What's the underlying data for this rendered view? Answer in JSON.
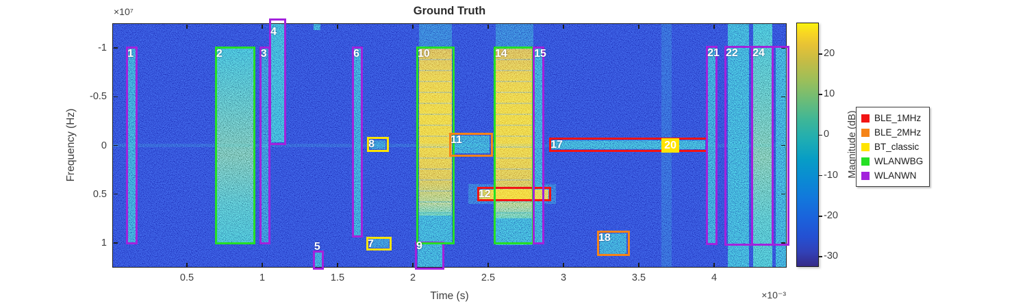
{
  "title": {
    "text": "Ground Truth"
  },
  "axes": {
    "x": {
      "label": "Time (s)",
      "exponent": "×10⁻³",
      "ticks": [
        "0.5",
        "1",
        "1.5",
        "2",
        "2.5",
        "3",
        "3.5",
        "4"
      ],
      "tick_values": [
        0.5,
        1,
        1.5,
        2,
        2.5,
        3,
        3.5,
        4
      ]
    },
    "y": {
      "label": "Frequency (Hz)",
      "exponent": "×10⁷",
      "ticks": [
        "-1",
        "-0.5",
        "0",
        "0.5",
        "1"
      ],
      "tick_values": [
        -1,
        -0.5,
        0,
        0.5,
        1
      ]
    }
  },
  "colorbar": {
    "label": "Magnitude (dB)",
    "ticks": [
      "20",
      "10",
      "0",
      "-10",
      "-20",
      "-30"
    ],
    "tick_values": [
      20,
      10,
      0,
      -10,
      -20,
      -30
    ]
  },
  "legend": {
    "items": [
      {
        "label": "BLE_1MHz",
        "color": "#f21414"
      },
      {
        "label": "BLE_2MHz",
        "color": "#f58418"
      },
      {
        "label": "BT_classic",
        "color": "#ffe400"
      },
      {
        "label": "WLANWBG",
        "color": "#25e025"
      },
      {
        "label": "WLANWN",
        "color": "#a322dc"
      }
    ]
  },
  "chart_data": {
    "type": "heatmap",
    "subtype": "spectrogram_with_object_annotations",
    "time_axis": {
      "unit": "s",
      "scale": 0.001,
      "range_ms": [
        0.0,
        4.49
      ]
    },
    "freq_axis": {
      "unit": "Hz",
      "scale": 10000000,
      "range": [
        -1.25,
        1.25
      ],
      "direction": "negative_up"
    },
    "magnitude_range_dB": [
      -32,
      28
    ],
    "annotations": [
      {
        "n": "1",
        "cls": "WLANWN",
        "t_ms": [
          0.105,
          0.164
        ],
        "f_1e7Hz": [
          -1.0,
          1.0
        ]
      },
      {
        "n": "2",
        "cls": "WLANWBG",
        "t_ms": [
          0.695,
          0.945
        ],
        "f_1e7Hz": [
          -1.0,
          1.0
        ]
      },
      {
        "n": "3",
        "cls": "WLANWN",
        "t_ms": [
          0.99,
          1.045
        ],
        "f_1e7Hz": [
          -1.0,
          1.0
        ]
      },
      {
        "n": "4",
        "cls": "WLANWN",
        "t_ms": [
          1.055,
          1.148
        ],
        "f_1e7Hz": [
          -1.29,
          -0.02
        ],
        "label_dy": 9
      },
      {
        "n": "5",
        "cls": "WLANWN",
        "t_ms": [
          1.345,
          1.4
        ],
        "f_1e7Hz": [
          1.09,
          1.26
        ],
        "label_dy": -16
      },
      {
        "n": "6",
        "cls": "WLANWN",
        "t_ms": [
          1.605,
          1.66
        ],
        "f_1e7Hz": [
          -1.0,
          0.93
        ]
      },
      {
        "n": "7",
        "cls": "BT_classic",
        "t_ms": [
          1.7,
          1.85
        ],
        "f_1e7Hz": [
          0.95,
          1.065
        ]
      },
      {
        "n": "8",
        "cls": "BT_classic",
        "t_ms": [
          1.705,
          1.83
        ],
        "f_1e7Hz": [
          -0.075,
          0.05
        ]
      },
      {
        "n": "9",
        "cls": "WLANWN",
        "t_ms": [
          2.023,
          2.2
        ],
        "f_1e7Hz": [
          1.0,
          1.26
        ],
        "label_dy": -4
      },
      {
        "n": "10",
        "cls": "WLANWBG",
        "t_ms": [
          2.032,
          2.268
        ],
        "f_1e7Hz": [
          -1.0,
          1.0
        ]
      },
      {
        "n": "11",
        "cls": "BLE_2MHz",
        "t_ms": [
          2.25,
          2.523
        ],
        "f_1e7Hz": [
          -0.115,
          0.1
        ]
      },
      {
        "n": "12",
        "cls": "BLE_1MHz",
        "t_ms": [
          2.435,
          2.91
        ],
        "f_1e7Hz": [
          0.44,
          0.56
        ]
      },
      {
        "n": "14",
        "cls": "WLANWBG",
        "t_ms": [
          2.545,
          2.795
        ],
        "f_1e7Hz": [
          -1.0,
          1.0
        ]
      },
      {
        "n": "15",
        "cls": "WLANWN",
        "t_ms": [
          2.805,
          2.864
        ],
        "f_1e7Hz": [
          -1.0,
          1.0
        ]
      },
      {
        "n": "17",
        "cls": "BLE_1MHz",
        "t_ms": [
          2.914,
          3.95
        ],
        "f_1e7Hz": [
          -0.065,
          0.055
        ]
      },
      {
        "n": "18",
        "cls": "BLE_2MHz",
        "t_ms": [
          3.232,
          3.432
        ],
        "f_1e7Hz": [
          0.89,
          1.12
        ]
      },
      {
        "n": "20",
        "cls": "BT_classic",
        "t_ms": [
          3.66,
          3.78
        ],
        "f_1e7Hz": [
          -0.07,
          0.06
        ],
        "label_only": true,
        "label_bg": true
      },
      {
        "n": "21",
        "cls": "WLANWN",
        "t_ms": [
          3.955,
          4.014
        ],
        "f_1e7Hz": [
          -1.01,
          1.01
        ]
      },
      {
        "n": "22",
        "cls": "WLANWN",
        "t_ms": [
          4.077,
          4.49
        ],
        "f_1e7Hz": [
          -1.01,
          1.015
        ]
      },
      {
        "n": "24",
        "cls": "WLANWN",
        "t_ms": [
          4.255,
          4.385
        ],
        "f_1e7Hz": [
          -1.01,
          1.015
        ]
      }
    ],
    "signal_regions": [
      {
        "t_ms": [
          0.108,
          0.162
        ],
        "f_1e7Hz": [
          -1.0,
          1.0
        ],
        "kind": "teal",
        "opacity": 0.5
      },
      {
        "t_ms": [
          0.7,
          0.94
        ],
        "f_1e7Hz": [
          -1.0,
          1.0
        ],
        "kind": "tealgreen",
        "opacity": 0.75
      },
      {
        "t_ms": [
          0.995,
          1.04
        ],
        "f_1e7Hz": [
          -1.0,
          1.0
        ],
        "kind": "teal",
        "opacity": 0.4
      },
      {
        "t_ms": [
          1.06,
          1.145
        ],
        "f_1e7Hz": [
          -1.25,
          -0.03
        ],
        "kind": "teal",
        "opacity": 0.65
      },
      {
        "t_ms": [
          1.34,
          1.385
        ],
        "f_1e7Hz": [
          -1.25,
          -1.18
        ],
        "kind": "teal",
        "opacity": 0.5
      },
      {
        "t_ms": [
          1.35,
          1.395
        ],
        "f_1e7Hz": [
          1.1,
          1.26
        ],
        "kind": "teal",
        "opacity": 0.5
      },
      {
        "t_ms": [
          1.61,
          1.655
        ],
        "f_1e7Hz": [
          -1.0,
          0.93
        ],
        "kind": "teal",
        "opacity": 0.5
      },
      {
        "t_ms": [
          1.72,
          1.84
        ],
        "f_1e7Hz": [
          0.96,
          1.05
        ],
        "kind": "teal",
        "opacity": 0.4
      },
      {
        "t_ms": [
          1.72,
          1.82
        ],
        "f_1e7Hz": [
          -0.05,
          0.04
        ],
        "kind": "teal",
        "opacity": 0.4
      },
      {
        "t_ms": [
          2.03,
          2.2
        ],
        "f_1e7Hz": [
          1.0,
          1.26
        ],
        "kind": "teal",
        "opacity": 0.55
      },
      {
        "t_ms": [
          2.04,
          2.26
        ],
        "f_1e7Hz": [
          -1.25,
          -1.0
        ],
        "kind": "teal",
        "opacity": 0.3
      },
      {
        "t_ms": [
          2.04,
          2.26
        ],
        "f_1e7Hz": [
          -1.0,
          0.72
        ],
        "kind": "hot",
        "opacity": 0.95
      },
      {
        "t_ms": [
          2.04,
          2.26
        ],
        "f_1e7Hz": [
          0.72,
          1.0
        ],
        "kind": "teal",
        "opacity": 0.6
      },
      {
        "t_ms": [
          2.27,
          2.51
        ],
        "f_1e7Hz": [
          -0.1,
          0.08
        ],
        "kind": "teal",
        "opacity": 0.5
      },
      {
        "t_ms": [
          2.37,
          2.95
        ],
        "f_1e7Hz": [
          0.4,
          0.6
        ],
        "kind": "teal",
        "opacity": 0.25
      },
      {
        "t_ms": [
          2.55,
          2.8
        ],
        "f_1e7Hz": [
          -1.25,
          -1.0
        ],
        "kind": "teal",
        "opacity": 0.3
      },
      {
        "t_ms": [
          2.55,
          2.79
        ],
        "f_1e7Hz": [
          -1.0,
          0.75
        ],
        "kind": "hot",
        "opacity": 0.95
      },
      {
        "t_ms": [
          2.55,
          2.79
        ],
        "f_1e7Hz": [
          0.75,
          1.02
        ],
        "kind": "teal",
        "opacity": 0.6
      },
      {
        "t_ms": [
          2.81,
          2.86
        ],
        "f_1e7Hz": [
          -1.0,
          1.0
        ],
        "kind": "teal",
        "opacity": 0.5
      },
      {
        "t_ms": [
          2.44,
          2.9
        ],
        "f_1e7Hz": [
          0.45,
          0.555
        ],
        "kind": "hotband",
        "opacity": 0.95
      },
      {
        "t_ms": [
          2.92,
          3.94
        ],
        "f_1e7Hz": [
          -0.05,
          0.04
        ],
        "kind": "teal",
        "opacity": 0.55
      },
      {
        "t_ms": [
          3.24,
          3.42
        ],
        "f_1e7Hz": [
          0.9,
          1.11
        ],
        "kind": "teal",
        "opacity": 0.5
      },
      {
        "t_ms": [
          3.65,
          3.72
        ],
        "f_1e7Hz": [
          -1.25,
          1.26
        ],
        "kind": "teal",
        "opacity": 0.16
      },
      {
        "t_ms": [
          3.96,
          4.01
        ],
        "f_1e7Hz": [
          -1.0,
          1.01
        ],
        "kind": "teal",
        "opacity": 0.5
      },
      {
        "t_ms": [
          4.09,
          4.23
        ],
        "f_1e7Hz": [
          -1.25,
          1.26
        ],
        "kind": "teal",
        "opacity": 0.6
      },
      {
        "t_ms": [
          4.26,
          4.385
        ],
        "f_1e7Hz": [
          -1.25,
          1.26
        ],
        "kind": "tealgreen",
        "opacity": 0.8
      },
      {
        "t_ms": [
          4.41,
          4.485
        ],
        "f_1e7Hz": [
          -1.0,
          1.26
        ],
        "kind": "teal",
        "opacity": 0.55
      },
      {
        "t_ms": [
          0.0,
          4.49
        ],
        "f_1e7Hz": [
          -0.015,
          0.015
        ],
        "kind": "teal",
        "opacity": 0.12
      }
    ]
  }
}
